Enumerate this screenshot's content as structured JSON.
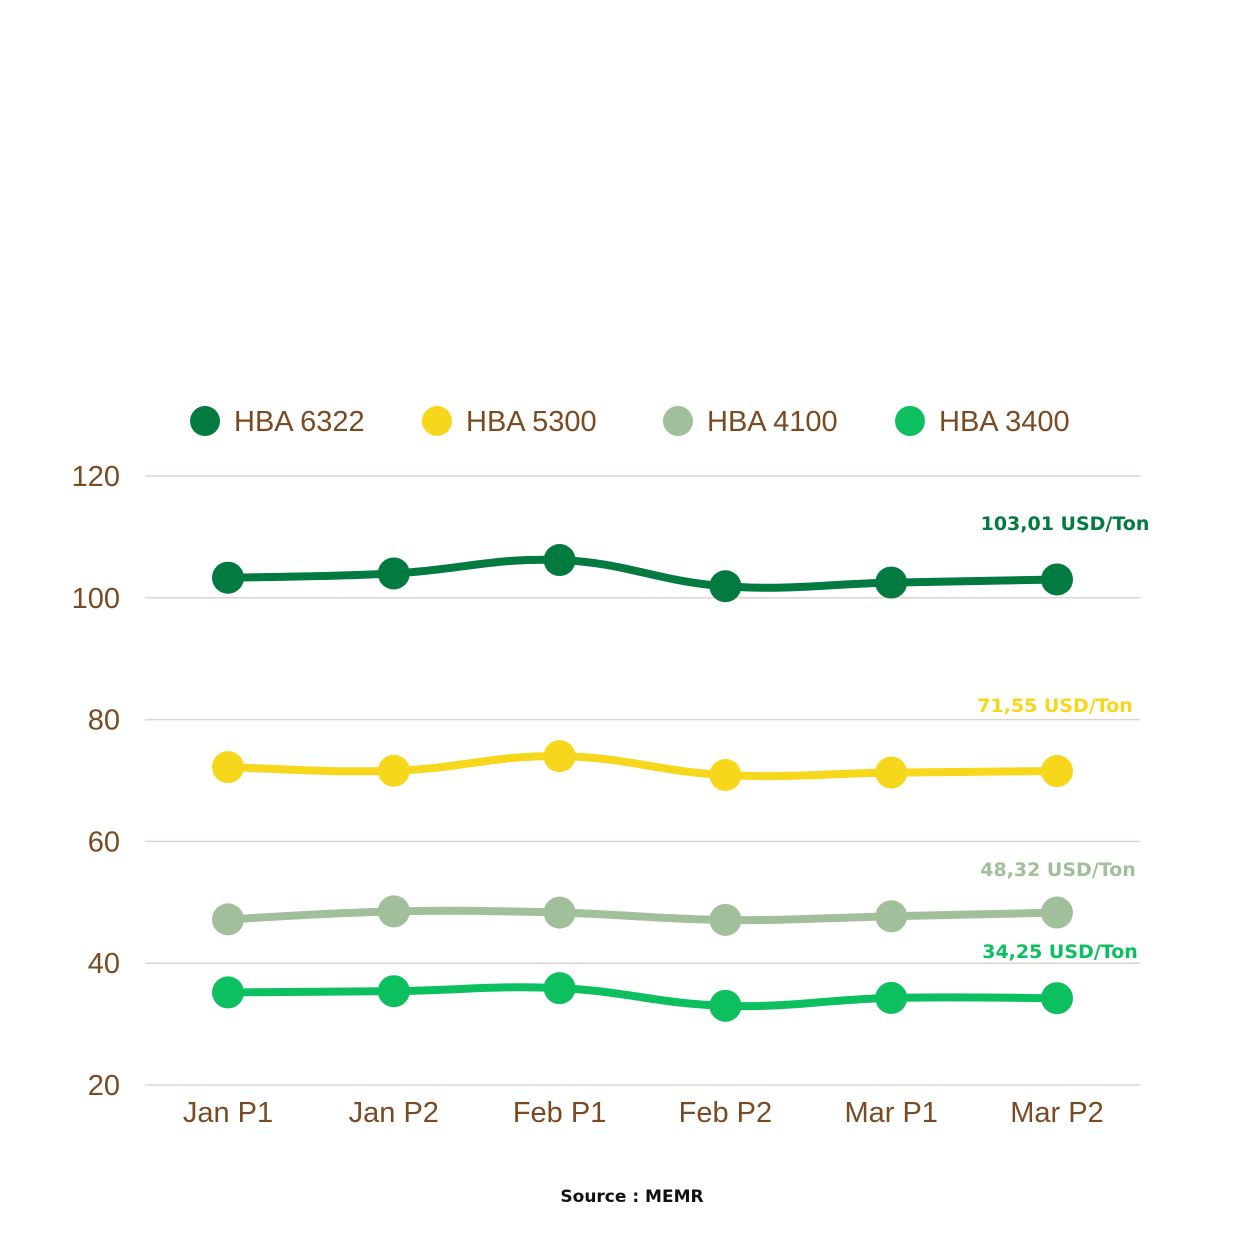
{
  "chart_data": {
    "type": "line",
    "categories": [
      "Jan P1",
      "Jan P2",
      "Feb P1",
      "Feb P2",
      "Mar P1",
      "Mar P2"
    ],
    "series": [
      {
        "name": "HBA 6322",
        "color": "#037a3f",
        "values": [
          103.3,
          104.0,
          106.2,
          101.9,
          102.5,
          103.01
        ],
        "end_label": "103,01 USD/Ton"
      },
      {
        "name": "HBA 5300",
        "color": "#f7d71c",
        "values": [
          72.2,
          71.6,
          74.0,
          70.9,
          71.3,
          71.55
        ],
        "end_label": "71,55 USD/Ton"
      },
      {
        "name": "HBA 4100",
        "color": "#a2bf9b",
        "values": [
          47.2,
          48.5,
          48.3,
          47.1,
          47.7,
          48.32
        ],
        "end_label": "48,32 USD/Ton"
      },
      {
        "name": "HBA 3400",
        "color": "#0dc05f",
        "values": [
          35.2,
          35.4,
          35.9,
          33.0,
          34.3,
          34.25
        ],
        "end_label": "34,25 USD/Ton"
      }
    ],
    "y_ticks": [
      "120",
      "100",
      "80",
      "60",
      "40",
      "20"
    ],
    "ylim": [
      20,
      120
    ],
    "grid": true,
    "legend_position": "top",
    "xlabel": "",
    "ylabel": "",
    "colors": {
      "tick_text": "#7a4a22",
      "grid": "#ddd5cc"
    }
  },
  "source": "Source : MEMR"
}
